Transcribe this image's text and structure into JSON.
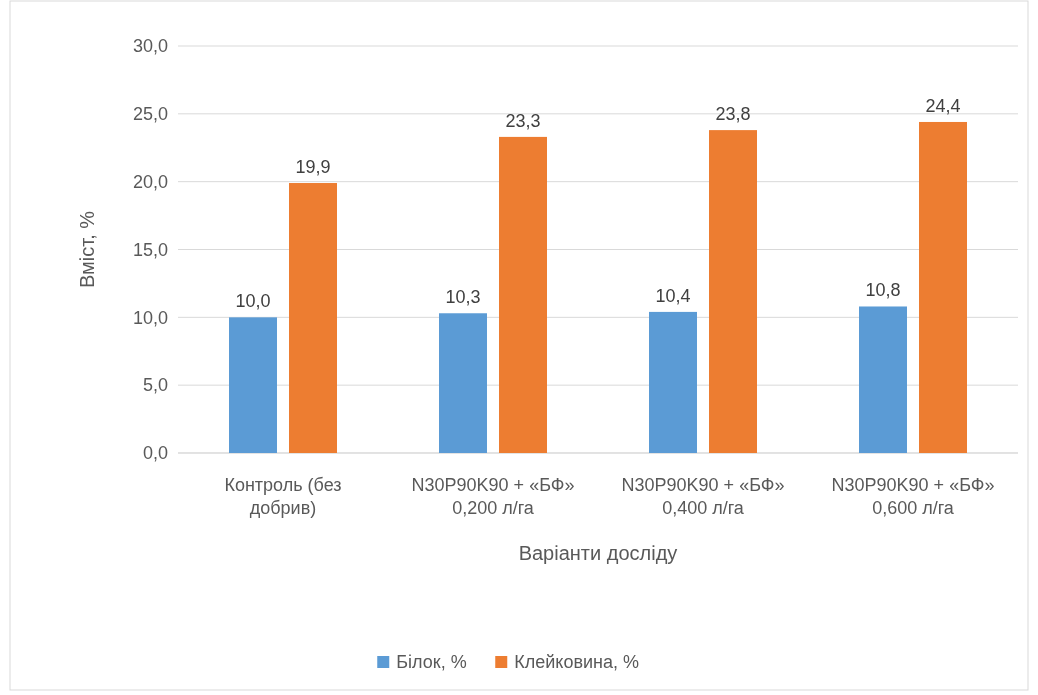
{
  "chart_data": {
    "type": "bar",
    "xlabel": "Варіанти досліду",
    "ylabel": "Вміст, %",
    "categories": [
      "Контроль (без добрив)",
      "N30P90K90 + «БФ» 0,200 л/га",
      "N30P90K90 + «БФ» 0,400 л/га",
      "N30P90K90 + «БФ» 0,600 л/га"
    ],
    "series": [
      {
        "name": "Білок, %",
        "color": "#5b9bd5",
        "values": [
          10.0,
          10.3,
          10.4,
          10.8
        ],
        "value_labels": [
          "10,0",
          "10,3",
          "10,4",
          "10,8"
        ]
      },
      {
        "name": "Клейковина, %",
        "color": "#ed7d31",
        "values": [
          19.9,
          23.3,
          23.8,
          24.4
        ],
        "value_labels": [
          "19,9",
          "23,3",
          "23,8",
          "24,4"
        ]
      }
    ],
    "ylim": [
      0,
      30
    ],
    "yticks": [
      {
        "value": 0,
        "label": "0,0"
      },
      {
        "value": 5,
        "label": "5,0"
      },
      {
        "value": 10,
        "label": "10,0"
      },
      {
        "value": 15,
        "label": "15,0"
      },
      {
        "value": 20,
        "label": "20,0"
      },
      {
        "value": 25,
        "label": "25,0"
      },
      {
        "value": 30,
        "label": "30,0"
      }
    ],
    "grid": "y",
    "legend": "bottom"
  }
}
